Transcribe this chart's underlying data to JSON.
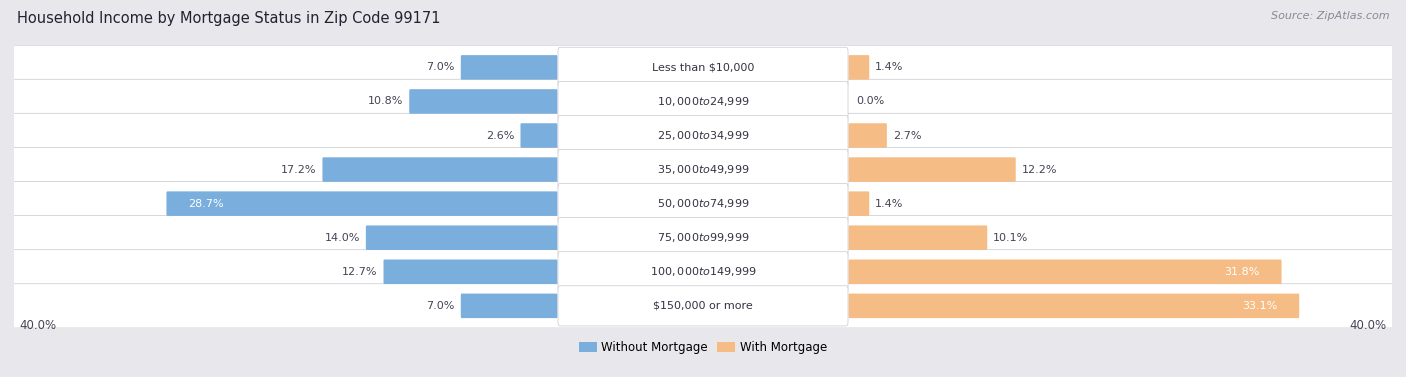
{
  "title": "Household Income by Mortgage Status in Zip Code 99171",
  "source": "Source: ZipAtlas.com",
  "categories": [
    "Less than $10,000",
    "$10,000 to $24,999",
    "$25,000 to $34,999",
    "$35,000 to $49,999",
    "$50,000 to $74,999",
    "$75,000 to $99,999",
    "$100,000 to $149,999",
    "$150,000 or more"
  ],
  "without_mortgage": [
    7.0,
    10.8,
    2.6,
    17.2,
    28.7,
    14.0,
    12.7,
    7.0
  ],
  "with_mortgage": [
    1.4,
    0.0,
    2.7,
    12.2,
    1.4,
    10.1,
    31.8,
    33.1
  ],
  "without_mortgage_color": "#7aaedc",
  "with_mortgage_color": "#f5bc85",
  "without_mortgage_color_dark": "#5a8fc0",
  "axis_limit": 40.0,
  "bg_color": "#e8e8ec",
  "row_bg_color": "#f5f5f7",
  "row_alt_color": "#ebebef",
  "bar_height": 0.62,
  "title_fontsize": 10.5,
  "source_fontsize": 8,
  "label_fontsize": 8,
  "category_fontsize": 8,
  "legend_fontsize": 8.5,
  "axis_label_fontsize": 8.5
}
